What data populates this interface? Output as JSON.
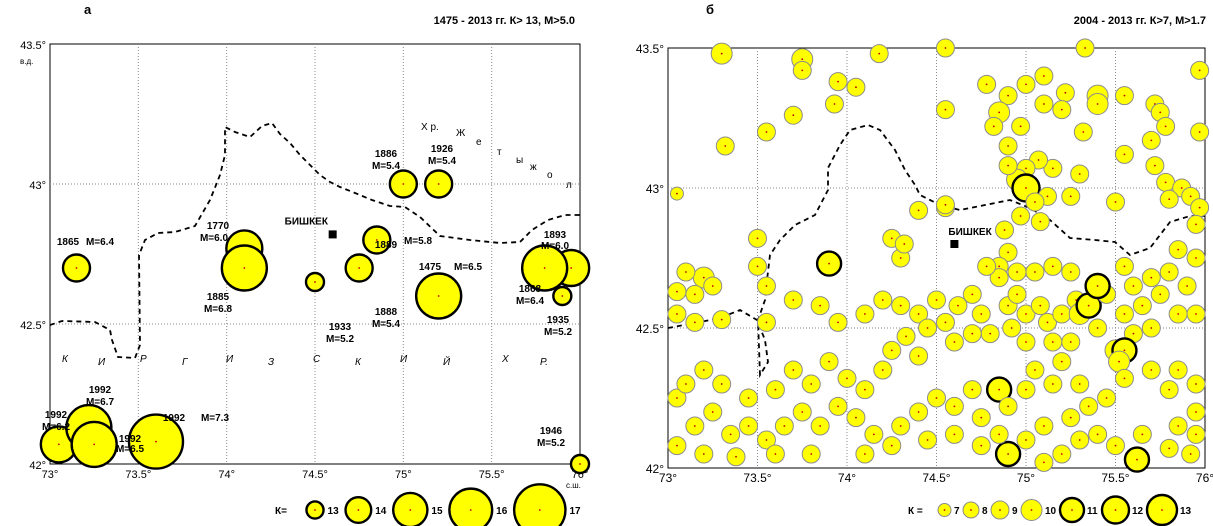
{
  "map_a": {
    "panel_label": "а",
    "header": "1475 - 2013 гг.  К> 13,  М>5.0",
    "x_ticks": [
      "73°",
      "73.5°",
      "74°",
      "74.5°",
      "75°",
      "75.5°",
      "76°"
    ],
    "y_ticks": [
      "43.5°",
      "43°",
      "42.5°",
      "42°"
    ],
    "lon_note": "в.д.",
    "lat_note": "с.ш.",
    "x_range": [
      73,
      76
    ],
    "y_range": [
      42,
      43.5
    ],
    "grid": true,
    "city": {
      "name": "БИШКЕК",
      "lon": 74.6,
      "lat": 42.82
    },
    "region_letters": [
      "К",
      "И",
      "Р",
      "Г",
      "И",
      "З",
      "С",
      "К",
      "И",
      "Й",
      "Х",
      "Р."
    ],
    "river_letters": [
      "Х р.",
      "Ж",
      "е",
      "т",
      "ы",
      "ж",
      "о",
      "л"
    ],
    "events": [
      {
        "lon": 75.0,
        "lat": 43.0,
        "k": 14,
        "year": "1886",
        "mag": "M=5.4"
      },
      {
        "lon": 75.2,
        "lat": 43.0,
        "k": 14,
        "year": "1926",
        "mag": "M=5.4"
      },
      {
        "lon": 73.15,
        "lat": 42.7,
        "k": 14,
        "year": "1865",
        "mag": "M=6.4"
      },
      {
        "lon": 74.1,
        "lat": 42.77,
        "k": 15,
        "year": "1770",
        "mag": "M=6.0"
      },
      {
        "lon": 74.1,
        "lat": 42.7,
        "k": 16,
        "year": "1885",
        "mag": "M=6.8"
      },
      {
        "lon": 74.5,
        "lat": 42.65,
        "k": 13,
        "year": "1933",
        "mag": "M=5.2"
      },
      {
        "lon": 74.85,
        "lat": 42.8,
        "k": 14,
        "year": "1889",
        "mag": "M=5.8"
      },
      {
        "lon": 74.75,
        "lat": 42.7,
        "k": 14,
        "year": "1888",
        "mag": "M=5.4"
      },
      {
        "lon": 75.2,
        "lat": 42.6,
        "k": 16,
        "year": "1475",
        "mag": "M=6.5"
      },
      {
        "lon": 75.95,
        "lat": 42.7,
        "k": 15,
        "year": "1893",
        "mag": "M=6.0"
      },
      {
        "lon": 75.8,
        "lat": 42.7,
        "k": 16,
        "year": "1868",
        "mag": "M=6.4"
      },
      {
        "lon": 75.9,
        "lat": 42.6,
        "k": 13,
        "year": "1935",
        "mag": "M=5.2"
      },
      {
        "lon": 73.05,
        "lat": 42.07,
        "k": 15,
        "year": "1992",
        "mag": "M=6.2"
      },
      {
        "lon": 73.22,
        "lat": 42.13,
        "k": 16,
        "year": "1992",
        "mag": "M=6.7"
      },
      {
        "lon": 73.25,
        "lat": 42.07,
        "k": 16,
        "year": "1992",
        "mag": "M=6.5"
      },
      {
        "lon": 73.6,
        "lat": 42.08,
        "k": 17,
        "year": "1992",
        "mag": "M=7.3"
      },
      {
        "lon": 76.0,
        "lat": 42.0,
        "k": 13,
        "year": "1946",
        "mag": "M=5.2"
      }
    ],
    "legend_prefix": "К=",
    "legend_classes": [
      13,
      14,
      15,
      16,
      17
    ]
  },
  "map_b": {
    "panel_label": "б",
    "header": "2004 - 2013 гг.  К>7,  М>1.7",
    "x_ticks": [
      "73°",
      "73.5°",
      "74°",
      "74.5°",
      "75°",
      "75.5°",
      "76°"
    ],
    "y_ticks": [
      "43.5°",
      "43°",
      "42.5°",
      "42°"
    ],
    "x_range": [
      73,
      76
    ],
    "y_range": [
      42,
      43.5
    ],
    "grid": true,
    "city": {
      "name": "БИШКЕК",
      "lon": 74.6,
      "lat": 42.8
    },
    "legend_prefix": "К =",
    "legend_classes": [
      7,
      8,
      9,
      10,
      11,
      12,
      13
    ],
    "events": [
      {
        "lon": 73.3,
        "lat": 43.48,
        "k": 10
      },
      {
        "lon": 73.75,
        "lat": 43.46,
        "k": 10
      },
      {
        "lon": 73.75,
        "lat": 43.42,
        "k": 9
      },
      {
        "lon": 73.95,
        "lat": 43.38,
        "k": 9
      },
      {
        "lon": 74.18,
        "lat": 43.48,
        "k": 9
      },
      {
        "lon": 74.05,
        "lat": 43.36,
        "k": 9
      },
      {
        "lon": 73.93,
        "lat": 43.3,
        "k": 9
      },
      {
        "lon": 73.7,
        "lat": 43.26,
        "k": 9
      },
      {
        "lon": 73.55,
        "lat": 43.2,
        "k": 9
      },
      {
        "lon": 73.32,
        "lat": 43.15,
        "k": 9
      },
      {
        "lon": 74.55,
        "lat": 43.5,
        "k": 9
      },
      {
        "lon": 75.33,
        "lat": 43.5,
        "k": 9
      },
      {
        "lon": 75.97,
        "lat": 43.42,
        "k": 9
      },
      {
        "lon": 75.1,
        "lat": 43.4,
        "k": 9
      },
      {
        "lon": 75.22,
        "lat": 43.34,
        "k": 9
      },
      {
        "lon": 75.0,
        "lat": 43.37,
        "k": 9
      },
      {
        "lon": 74.78,
        "lat": 43.37,
        "k": 9
      },
      {
        "lon": 74.9,
        "lat": 43.33,
        "k": 9
      },
      {
        "lon": 74.85,
        "lat": 43.27,
        "k": 10
      },
      {
        "lon": 74.97,
        "lat": 43.22,
        "k": 9
      },
      {
        "lon": 74.82,
        "lat": 43.22,
        "k": 9
      },
      {
        "lon": 74.55,
        "lat": 43.28,
        "k": 9
      },
      {
        "lon": 75.1,
        "lat": 43.3,
        "k": 9
      },
      {
        "lon": 75.2,
        "lat": 43.28,
        "k": 9
      },
      {
        "lon": 75.4,
        "lat": 43.33,
        "k": 10
      },
      {
        "lon": 75.4,
        "lat": 43.3,
        "k": 10
      },
      {
        "lon": 75.32,
        "lat": 43.2,
        "k": 9
      },
      {
        "lon": 75.55,
        "lat": 43.33,
        "k": 9
      },
      {
        "lon": 75.72,
        "lat": 43.3,
        "k": 9
      },
      {
        "lon": 75.75,
        "lat": 43.27,
        "k": 9
      },
      {
        "lon": 75.78,
        "lat": 43.22,
        "k": 9
      },
      {
        "lon": 75.97,
        "lat": 43.2,
        "k": 9
      },
      {
        "lon": 75.7,
        "lat": 43.17,
        "k": 9
      },
      {
        "lon": 75.55,
        "lat": 43.12,
        "k": 9
      },
      {
        "lon": 75.72,
        "lat": 43.08,
        "k": 9
      },
      {
        "lon": 75.78,
        "lat": 43.02,
        "k": 9
      },
      {
        "lon": 75.87,
        "lat": 43.0,
        "k": 9
      },
      {
        "lon": 75.92,
        "lat": 42.97,
        "k": 9
      },
      {
        "lon": 75.97,
        "lat": 42.93,
        "k": 9
      },
      {
        "lon": 75.95,
        "lat": 42.87,
        "k": 9
      },
      {
        "lon": 75.8,
        "lat": 42.96,
        "k": 9
      },
      {
        "lon": 75.5,
        "lat": 42.95,
        "k": 9
      },
      {
        "lon": 75.3,
        "lat": 43.05,
        "k": 9
      },
      {
        "lon": 75.15,
        "lat": 43.07,
        "k": 9
      },
      {
        "lon": 75.07,
        "lat": 43.1,
        "k": 9
      },
      {
        "lon": 75.0,
        "lat": 43.07,
        "k": 9
      },
      {
        "lon": 74.95,
        "lat": 43.03,
        "k": 10
      },
      {
        "lon": 75.0,
        "lat": 43.0,
        "k": 12
      },
      {
        "lon": 74.9,
        "lat": 43.15,
        "k": 9
      },
      {
        "lon": 74.9,
        "lat": 43.08,
        "k": 9
      },
      {
        "lon": 75.12,
        "lat": 42.97,
        "k": 9
      },
      {
        "lon": 75.25,
        "lat": 42.97,
        "k": 9
      },
      {
        "lon": 75.05,
        "lat": 42.95,
        "k": 9
      },
      {
        "lon": 74.97,
        "lat": 42.9,
        "k": 9
      },
      {
        "lon": 75.08,
        "lat": 42.88,
        "k": 9
      },
      {
        "lon": 74.4,
        "lat": 42.92,
        "k": 9
      },
      {
        "lon": 74.55,
        "lat": 42.93,
        "k": 9
      },
      {
        "lon": 74.55,
        "lat": 42.94,
        "k": 9
      },
      {
        "lon": 74.88,
        "lat": 42.85,
        "k": 9
      },
      {
        "lon": 74.9,
        "lat": 42.77,
        "k": 9
      },
      {
        "lon": 74.85,
        "lat": 42.72,
        "k": 9
      },
      {
        "lon": 74.25,
        "lat": 42.82,
        "k": 9
      },
      {
        "lon": 74.3,
        "lat": 42.75,
        "k": 9
      },
      {
        "lon": 74.32,
        "lat": 42.8,
        "k": 9
      },
      {
        "lon": 73.9,
        "lat": 42.73,
        "k": 11
      },
      {
        "lon": 73.05,
        "lat": 42.98,
        "k": 7
      },
      {
        "lon": 73.5,
        "lat": 42.82,
        "k": 9
      },
      {
        "lon": 73.5,
        "lat": 42.72,
        "k": 9
      },
      {
        "lon": 73.55,
        "lat": 42.65,
        "k": 9
      },
      {
        "lon": 73.2,
        "lat": 42.68,
        "k": 10
      },
      {
        "lon": 73.25,
        "lat": 42.65,
        "k": 9
      },
      {
        "lon": 73.15,
        "lat": 42.62,
        "k": 9
      },
      {
        "lon": 73.05,
        "lat": 42.63,
        "k": 9
      },
      {
        "lon": 73.1,
        "lat": 42.7,
        "k": 9
      },
      {
        "lon": 73.05,
        "lat": 42.55,
        "k": 9
      },
      {
        "lon": 73.15,
        "lat": 42.52,
        "k": 9
      },
      {
        "lon": 73.3,
        "lat": 42.53,
        "k": 9
      },
      {
        "lon": 73.55,
        "lat": 42.52,
        "k": 9
      },
      {
        "lon": 73.7,
        "lat": 42.6,
        "k": 9
      },
      {
        "lon": 73.85,
        "lat": 42.58,
        "k": 9
      },
      {
        "lon": 73.95,
        "lat": 42.52,
        "k": 9
      },
      {
        "lon": 74.1,
        "lat": 42.55,
        "k": 9
      },
      {
        "lon": 74.2,
        "lat": 42.6,
        "k": 9
      },
      {
        "lon": 74.3,
        "lat": 42.58,
        "k": 9
      },
      {
        "lon": 74.4,
        "lat": 42.55,
        "k": 9
      },
      {
        "lon": 74.5,
        "lat": 42.6,
        "k": 9
      },
      {
        "lon": 74.55,
        "lat": 42.52,
        "k": 9
      },
      {
        "lon": 74.62,
        "lat": 42.58,
        "k": 9
      },
      {
        "lon": 74.7,
        "lat": 42.62,
        "k": 9
      },
      {
        "lon": 74.75,
        "lat": 42.55,
        "k": 9
      },
      {
        "lon": 74.8,
        "lat": 42.48,
        "k": 9
      },
      {
        "lon": 74.7,
        "lat": 42.48,
        "k": 9
      },
      {
        "lon": 74.6,
        "lat": 42.45,
        "k": 9
      },
      {
        "lon": 74.45,
        "lat": 42.5,
        "k": 9
      },
      {
        "lon": 74.33,
        "lat": 42.47,
        "k": 9
      },
      {
        "lon": 74.25,
        "lat": 42.42,
        "k": 9
      },
      {
        "lon": 74.4,
        "lat": 42.4,
        "k": 9
      },
      {
        "lon": 74.9,
        "lat": 42.58,
        "k": 9
      },
      {
        "lon": 74.92,
        "lat": 42.5,
        "k": 9
      },
      {
        "lon": 74.95,
        "lat": 42.62,
        "k": 9
      },
      {
        "lon": 75.0,
        "lat": 42.55,
        "k": 9
      },
      {
        "lon": 75.08,
        "lat": 42.58,
        "k": 9
      },
      {
        "lon": 75.12,
        "lat": 42.52,
        "k": 9
      },
      {
        "lon": 75.2,
        "lat": 42.55,
        "k": 9
      },
      {
        "lon": 75.28,
        "lat": 42.6,
        "k": 9
      },
      {
        "lon": 75.3,
        "lat": 42.55,
        "k": 10
      },
      {
        "lon": 75.35,
        "lat": 42.58,
        "k": 11
      },
      {
        "lon": 75.4,
        "lat": 42.5,
        "k": 9
      },
      {
        "lon": 75.45,
        "lat": 42.62,
        "k": 9
      },
      {
        "lon": 75.4,
        "lat": 42.65,
        "k": 11
      },
      {
        "lon": 75.25,
        "lat": 42.45,
        "k": 9
      },
      {
        "lon": 75.15,
        "lat": 42.45,
        "k": 9
      },
      {
        "lon": 75.0,
        "lat": 42.45,
        "k": 9
      },
      {
        "lon": 74.85,
        "lat": 42.68,
        "k": 9
      },
      {
        "lon": 74.78,
        "lat": 42.72,
        "k": 9
      },
      {
        "lon": 74.95,
        "lat": 42.7,
        "k": 9
      },
      {
        "lon": 75.05,
        "lat": 42.7,
        "k": 9
      },
      {
        "lon": 75.15,
        "lat": 42.72,
        "k": 9
      },
      {
        "lon": 75.25,
        "lat": 42.7,
        "k": 9
      },
      {
        "lon": 75.55,
        "lat": 42.72,
        "k": 9
      },
      {
        "lon": 75.6,
        "lat": 42.65,
        "k": 9
      },
      {
        "lon": 75.7,
        "lat": 42.68,
        "k": 9
      },
      {
        "lon": 75.8,
        "lat": 42.7,
        "k": 9
      },
      {
        "lon": 75.9,
        "lat": 42.65,
        "k": 9
      },
      {
        "lon": 75.95,
        "lat": 42.75,
        "k": 9
      },
      {
        "lon": 75.85,
        "lat": 42.78,
        "k": 9
      },
      {
        "lon": 75.75,
        "lat": 42.62,
        "k": 9
      },
      {
        "lon": 75.65,
        "lat": 42.58,
        "k": 9
      },
      {
        "lon": 75.55,
        "lat": 42.55,
        "k": 9
      },
      {
        "lon": 75.6,
        "lat": 42.48,
        "k": 9
      },
      {
        "lon": 75.7,
        "lat": 42.5,
        "k": 9
      },
      {
        "lon": 75.85,
        "lat": 42.55,
        "k": 9
      },
      {
        "lon": 75.95,
        "lat": 42.55,
        "k": 9
      },
      {
        "lon": 75.5,
        "lat": 42.42,
        "k": 10
      },
      {
        "lon": 75.55,
        "lat": 42.42,
        "k": 11
      },
      {
        "lon": 75.52,
        "lat": 42.38,
        "k": 10
      },
      {
        "lon": 75.55,
        "lat": 42.32,
        "k": 9
      },
      {
        "lon": 75.7,
        "lat": 42.35,
        "k": 9
      },
      {
        "lon": 75.85,
        "lat": 42.35,
        "k": 9
      },
      {
        "lon": 75.95,
        "lat": 42.3,
        "k": 9
      },
      {
        "lon": 75.8,
        "lat": 42.28,
        "k": 9
      },
      {
        "lon": 75.95,
        "lat": 42.2,
        "k": 9
      },
      {
        "lon": 75.85,
        "lat": 42.15,
        "k": 9
      },
      {
        "lon": 75.95,
        "lat": 42.12,
        "k": 9
      },
      {
        "lon": 75.92,
        "lat": 42.05,
        "k": 9
      },
      {
        "lon": 75.8,
        "lat": 42.07,
        "k": 9
      },
      {
        "lon": 75.62,
        "lat": 42.03,
        "k": 11
      },
      {
        "lon": 75.65,
        "lat": 42.12,
        "k": 9
      },
      {
        "lon": 75.5,
        "lat": 42.08,
        "k": 9
      },
      {
        "lon": 75.4,
        "lat": 42.12,
        "k": 9
      },
      {
        "lon": 75.3,
        "lat": 42.1,
        "k": 9
      },
      {
        "lon": 75.2,
        "lat": 42.05,
        "k": 9
      },
      {
        "lon": 75.1,
        "lat": 42.02,
        "k": 9
      },
      {
        "lon": 74.9,
        "lat": 42.05,
        "k": 11
      },
      {
        "lon": 75.0,
        "lat": 42.1,
        "k": 9
      },
      {
        "lon": 75.1,
        "lat": 42.15,
        "k": 9
      },
      {
        "lon": 75.25,
        "lat": 42.18,
        "k": 9
      },
      {
        "lon": 75.35,
        "lat": 42.22,
        "k": 9
      },
      {
        "lon": 75.45,
        "lat": 42.25,
        "k": 9
      },
      {
        "lon": 75.3,
        "lat": 42.3,
        "k": 9
      },
      {
        "lon": 75.15,
        "lat": 42.3,
        "k": 9
      },
      {
        "lon": 75.0,
        "lat": 42.28,
        "k": 9
      },
      {
        "lon": 74.85,
        "lat": 42.28,
        "k": 11
      },
      {
        "lon": 74.9,
        "lat": 42.22,
        "k": 9
      },
      {
        "lon": 74.75,
        "lat": 42.18,
        "k": 9
      },
      {
        "lon": 74.7,
        "lat": 42.28,
        "k": 9
      },
      {
        "lon": 74.6,
        "lat": 42.22,
        "k": 9
      },
      {
        "lon": 74.5,
        "lat": 42.25,
        "k": 9
      },
      {
        "lon": 74.4,
        "lat": 42.2,
        "k": 9
      },
      {
        "lon": 74.3,
        "lat": 42.15,
        "k": 9
      },
      {
        "lon": 74.25,
        "lat": 42.08,
        "k": 9
      },
      {
        "lon": 74.1,
        "lat": 42.05,
        "k": 9
      },
      {
        "lon": 74.15,
        "lat": 42.12,
        "k": 9
      },
      {
        "lon": 74.05,
        "lat": 42.18,
        "k": 9
      },
      {
        "lon": 73.95,
        "lat": 42.22,
        "k": 9
      },
      {
        "lon": 73.85,
        "lat": 42.15,
        "k": 9
      },
      {
        "lon": 73.75,
        "lat": 42.2,
        "k": 9
      },
      {
        "lon": 73.65,
        "lat": 42.15,
        "k": 9
      },
      {
        "lon": 73.55,
        "lat": 42.1,
        "k": 9
      },
      {
        "lon": 73.45,
        "lat": 42.15,
        "k": 9
      },
      {
        "lon": 73.35,
        "lat": 42.12,
        "k": 9
      },
      {
        "lon": 73.25,
        "lat": 42.2,
        "k": 9
      },
      {
        "lon": 73.15,
        "lat": 42.15,
        "k": 9
      },
      {
        "lon": 73.05,
        "lat": 42.25,
        "k": 9
      },
      {
        "lon": 73.1,
        "lat": 42.3,
        "k": 9
      },
      {
        "lon": 73.2,
        "lat": 42.35,
        "k": 9
      },
      {
        "lon": 73.3,
        "lat": 42.3,
        "k": 9
      },
      {
        "lon": 73.45,
        "lat": 42.25,
        "k": 9
      },
      {
        "lon": 73.6,
        "lat": 42.28,
        "k": 9
      },
      {
        "lon": 73.7,
        "lat": 42.35,
        "k": 9
      },
      {
        "lon": 73.8,
        "lat": 42.3,
        "k": 9
      },
      {
        "lon": 73.9,
        "lat": 42.38,
        "k": 9
      },
      {
        "lon": 74.0,
        "lat": 42.32,
        "k": 9
      },
      {
        "lon": 74.1,
        "lat": 42.28,
        "k": 9
      },
      {
        "lon": 74.2,
        "lat": 42.35,
        "k": 9
      },
      {
        "lon": 73.05,
        "lat": 42.08,
        "k": 9
      },
      {
        "lon": 73.2,
        "lat": 42.05,
        "k": 9
      },
      {
        "lon": 73.38,
        "lat": 42.04,
        "k": 9
      },
      {
        "lon": 73.6,
        "lat": 42.05,
        "k": 9
      },
      {
        "lon": 73.8,
        "lat": 42.05,
        "k": 9
      },
      {
        "lon": 74.45,
        "lat": 42.1,
        "k": 9
      },
      {
        "lon": 74.6,
        "lat": 42.12,
        "k": 9
      },
      {
        "lon": 74.75,
        "lat": 42.08,
        "k": 9
      },
      {
        "lon": 74.85,
        "lat": 42.12,
        "k": 9
      },
      {
        "lon": 75.05,
        "lat": 42.35,
        "k": 9
      },
      {
        "lon": 75.2,
        "lat": 42.38,
        "k": 9
      }
    ]
  }
}
